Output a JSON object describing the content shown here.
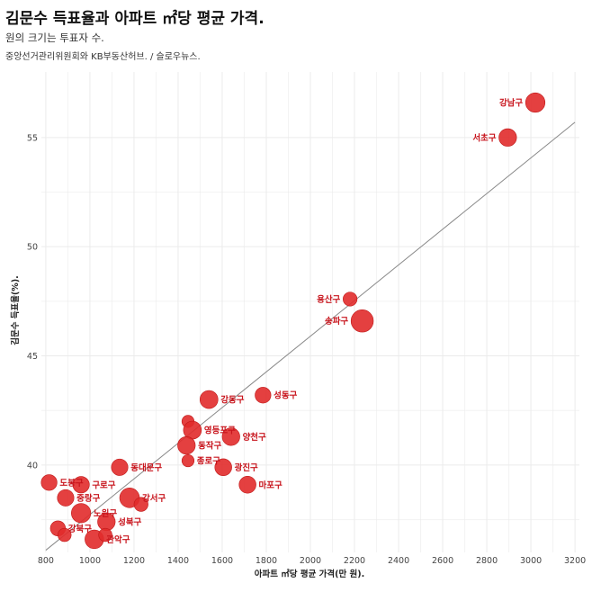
{
  "chart_data": {
    "type": "scatter",
    "title": "김문수 득표율과 아파트 ㎡당 평균 가격.",
    "subtitle": "원의 크기는 투표자 수.",
    "source": "중앙선거관리위원회와 KB부동산허브. / 슬로우뉴스.",
    "xlabel": "아파트 ㎡당 평균 가격(만 원).",
    "ylabel": "김문수 득표율(%).",
    "xlim": [
      780,
      3220
    ],
    "ylim": [
      36,
      58
    ],
    "xticks": [
      800,
      1000,
      1200,
      1400,
      1600,
      1800,
      2000,
      2200,
      2400,
      2600,
      2800,
      3000,
      3200
    ],
    "yticks": [
      40,
      45,
      50,
      55
    ],
    "trend_line": {
      "x1": 800,
      "y1": 36.1,
      "x2": 3200,
      "y2": 55.7
    },
    "points": [
      {
        "name": "강남구",
        "x": 3020,
        "y": 56.6,
        "size": 1.7
      },
      {
        "name": "서초구",
        "x": 2895,
        "y": 55.0,
        "size": 1.45
      },
      {
        "name": "용산구",
        "x": 2180,
        "y": 47.6,
        "size": 0.95
      },
      {
        "name": "송파구",
        "x": 2235,
        "y": 46.6,
        "size": 2.1
      },
      {
        "name": "강동구",
        "x": 1540,
        "y": 43.0,
        "size": 1.5
      },
      {
        "name": "성동구",
        "x": 1785,
        "y": 43.2,
        "size": 1.2
      },
      {
        "name": "",
        "x": 1445,
        "y": 42.0,
        "size": 0.7
      },
      {
        "name": "영등포구",
        "x": 1465,
        "y": 41.6,
        "size": 1.5
      },
      {
        "name": "양천구",
        "x": 1640,
        "y": 41.3,
        "size": 1.45
      },
      {
        "name": "동작구",
        "x": 1438,
        "y": 40.9,
        "size": 1.45
      },
      {
        "name": "종로구",
        "x": 1445,
        "y": 40.2,
        "size": 0.7
      },
      {
        "name": "광진구",
        "x": 1605,
        "y": 39.9,
        "size": 1.35
      },
      {
        "name": "마포구",
        "x": 1715,
        "y": 39.1,
        "size": 1.35
      },
      {
        "name": "동대문구",
        "x": 1135,
        "y": 39.9,
        "size": 1.3
      },
      {
        "name": "도봉구",
        "x": 815,
        "y": 39.2,
        "size": 1.2
      },
      {
        "name": "구로구",
        "x": 960,
        "y": 39.1,
        "size": 1.3
      },
      {
        "name": "중랑구",
        "x": 890,
        "y": 38.5,
        "size": 1.3
      },
      {
        "name": "강서구",
        "x": 1180,
        "y": 38.5,
        "size": 1.75
      },
      {
        "name": "",
        "x": 1232,
        "y": 38.2,
        "size": 0.95
      },
      {
        "name": "노원구",
        "x": 960,
        "y": 37.8,
        "size": 1.7
      },
      {
        "name": "성북구",
        "x": 1075,
        "y": 37.4,
        "size": 1.45
      },
      {
        "name": "강북구",
        "x": 855,
        "y": 37.1,
        "size": 1.1
      },
      {
        "name": "",
        "x": 885,
        "y": 36.8,
        "size": 0.85
      },
      {
        "name": "관악구",
        "x": 1020,
        "y": 36.6,
        "size": 1.6
      },
      {
        "name": "",
        "x": 1070,
        "y": 36.8,
        "size": 0.85
      }
    ]
  }
}
